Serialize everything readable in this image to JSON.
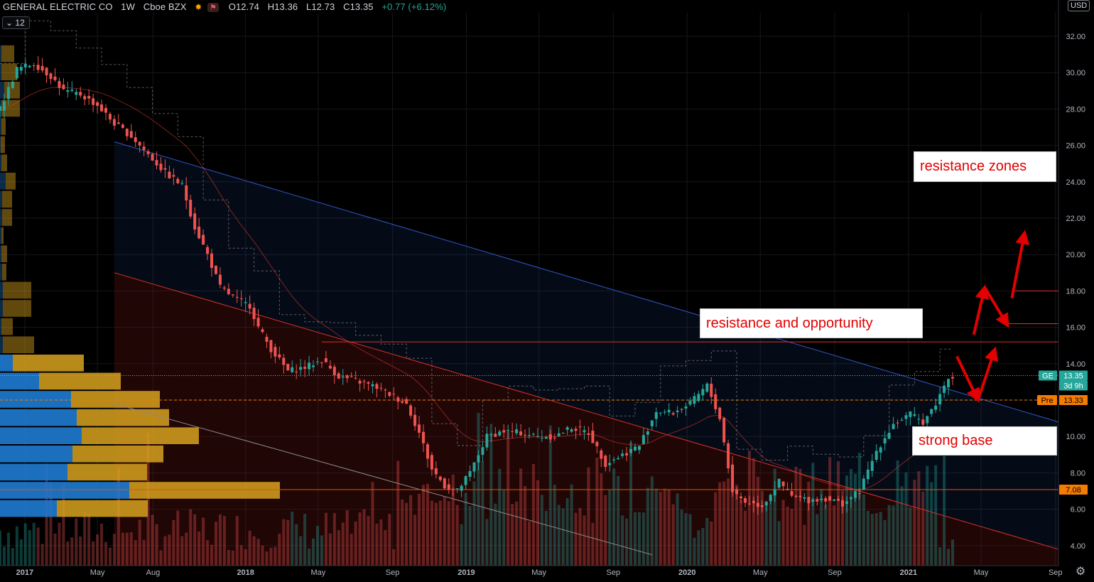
{
  "header": {
    "symbol": "GENERAL ELECTRIC CO",
    "interval": "1W",
    "exchange": "Cboe BZX",
    "open": "O12.74",
    "high": "H13.36",
    "low": "L12.73",
    "close": "C13.35",
    "change": "+0.77 (+6.12%)",
    "icons": [
      "dividends-icon",
      "earnings-icon"
    ]
  },
  "volume_badge": "12",
  "currency": "USD",
  "annotations": {
    "resistance_zones": "resistance zones",
    "resistance_opportunity": "resistance and opportunity",
    "strong_base": "strong base"
  },
  "price_labels": {
    "ticker": "GE",
    "price": "13.35",
    "countdown": "3d 9h",
    "pre_label": "Pre",
    "pre_price": "13.33",
    "support_price": "7.08"
  },
  "colors": {
    "up": "#26a69a",
    "down": "#ef5350",
    "annotation": "#e30000",
    "trend_blue": "#3057c9",
    "trend_red": "#d8322c",
    "pre_orange": "#f57c00",
    "vp_blue": "#1f7bd1",
    "vp_gold": "#d7a21f"
  },
  "chart_data": {
    "type": "candlestick",
    "title": "GENERAL ELECTRIC CO",
    "y_ticks": [
      "32.00",
      "30.00",
      "28.00",
      "26.00",
      "24.00",
      "22.00",
      "20.00",
      "18.00",
      "16.00",
      "14.00",
      "12.00",
      "10.00",
      "8.00",
      "6.00",
      "4.00"
    ],
    "y_tick_values": [
      32,
      30,
      28,
      26,
      24,
      22,
      20,
      18,
      16,
      14,
      12,
      10,
      8,
      6,
      4
    ],
    "x_ticks": [
      "2017",
      "May",
      "Aug",
      "2018",
      "May",
      "Sep",
      "2019",
      "May",
      "Sep",
      "2020",
      "May",
      "Sep",
      "2021",
      "May",
      "Sep"
    ],
    "x_tick_dates": [
      "2017-01-01",
      "2017-05-01",
      "2017-08-01",
      "2018-01-01",
      "2018-05-01",
      "2018-09-01",
      "2019-01-01",
      "2019-05-01",
      "2019-09-01",
      "2020-01-01",
      "2020-05-01",
      "2020-09-01",
      "2021-01-01",
      "2021-05-01",
      "2021-09-01"
    ],
    "ylim": [
      3.5,
      33
    ],
    "xlim": [
      "2016-11-21",
      "2021-09-06"
    ],
    "close_path": [
      [
        "2016-11-21",
        28.0
      ],
      [
        "2016-12-19",
        30.2
      ],
      [
        "2017-01-16",
        30.5
      ],
      [
        "2017-02-13",
        29.8
      ],
      [
        "2017-03-06",
        29.0
      ],
      [
        "2017-04-03",
        28.8
      ],
      [
        "2017-05-01",
        28.2
      ],
      [
        "2017-05-29",
        27.2
      ],
      [
        "2017-06-26",
        26.5
      ],
      [
        "2017-07-24",
        25.5
      ],
      [
        "2017-08-21",
        24.5
      ],
      [
        "2017-09-18",
        23.8
      ],
      [
        "2017-10-09",
        21.5
      ],
      [
        "2017-10-30",
        20.0
      ],
      [
        "2017-11-20",
        18.2
      ],
      [
        "2017-12-18",
        17.5
      ],
      [
        "2018-01-08",
        17.2
      ],
      [
        "2018-01-22",
        16.0
      ],
      [
        "2018-02-12",
        14.8
      ],
      [
        "2018-03-12",
        13.6
      ],
      [
        "2018-04-09",
        13.8
      ],
      [
        "2018-05-07",
        14.2
      ],
      [
        "2018-06-04",
        13.3
      ],
      [
        "2018-07-09",
        13.0
      ],
      [
        "2018-08-06",
        12.7
      ],
      [
        "2018-09-03",
        12.2
      ],
      [
        "2018-09-24",
        11.8
      ],
      [
        "2018-10-15",
        10.2
      ],
      [
        "2018-11-05",
        8.2
      ],
      [
        "2018-11-26",
        7.3
      ],
      [
        "2018-12-17",
        7.0
      ],
      [
        "2019-01-07",
        8.0
      ],
      [
        "2019-02-04",
        10.0
      ],
      [
        "2019-03-04",
        10.3
      ],
      [
        "2019-04-01",
        10.2
      ],
      [
        "2019-04-29",
        10.0
      ],
      [
        "2019-05-27",
        10.0
      ],
      [
        "2019-06-24",
        10.5
      ],
      [
        "2019-07-22",
        10.2
      ],
      [
        "2019-08-19",
        8.5
      ],
      [
        "2019-09-16",
        9.0
      ],
      [
        "2019-10-14",
        9.5
      ],
      [
        "2019-11-11",
        11.4
      ],
      [
        "2019-12-09",
        11.3
      ],
      [
        "2020-01-06",
        11.8
      ],
      [
        "2020-02-03",
        12.8
      ],
      [
        "2020-02-24",
        11.0
      ],
      [
        "2020-03-16",
        7.0
      ],
      [
        "2020-04-06",
        6.4
      ],
      [
        "2020-05-04",
        6.2
      ],
      [
        "2020-06-01",
        7.5
      ],
      [
        "2020-06-22",
        6.7
      ],
      [
        "2020-07-20",
        6.5
      ],
      [
        "2020-08-17",
        6.6
      ],
      [
        "2020-09-14",
        6.3
      ],
      [
        "2020-10-12",
        7.0
      ],
      [
        "2020-11-09",
        9.2
      ],
      [
        "2020-12-07",
        10.7
      ],
      [
        "2021-01-04",
        11.2
      ],
      [
        "2021-01-25",
        10.8
      ],
      [
        "2021-02-15",
        11.8
      ],
      [
        "2021-03-08",
        13.3
      ],
      [
        "2021-03-15",
        13.35
      ]
    ],
    "volume_profile": {
      "price_rows": [
        31,
        30,
        29,
        28,
        27,
        26,
        25,
        24,
        23,
        22,
        21,
        20,
        19,
        18,
        17,
        16,
        15,
        14,
        13,
        12,
        11,
        10,
        9,
        8,
        7,
        6
      ],
      "up_volume": [
        2,
        2,
        6,
        2,
        2,
        1,
        2,
        8,
        3,
        3,
        2,
        2,
        3,
        4,
        4,
        2,
        4,
        18,
        55,
        100,
        108,
        115,
        102,
        95,
        182,
        80
      ],
      "down_volume": [
        18,
        22,
        22,
        26,
        6,
        6,
        8,
        14,
        14,
        14,
        3,
        8,
        6,
        40,
        40,
        16,
        44,
        100,
        115,
        125,
        130,
        165,
        128,
        112,
        212,
        128
      ]
    },
    "trendlines": [
      {
        "color": "blue",
        "from": [
          "2017-05-29",
          26.2
        ],
        "to": [
          "2021-09-06",
          10.8
        ]
      },
      {
        "color": "red",
        "from": [
          "2017-05-29",
          19.0
        ],
        "to": [
          "2021-09-06",
          3.8
        ]
      },
      {
        "color": "gray",
        "from": [
          "2017-05-29",
          11.8
        ],
        "to": [
          "2019-11-04",
          3.5
        ]
      }
    ],
    "horizontal_levels": [
      15.2,
      13.35,
      13.33,
      12.0,
      7.08
    ],
    "projection_arrows": [
      {
        "from": [
          "2021-03-22",
          14.4
        ],
        "to": [
          "2021-04-26",
          12.0
        ]
      },
      {
        "from": [
          "2021-04-26",
          12.0
        ],
        "to": [
          "2021-05-24",
          14.8
        ]
      },
      {
        "from": [
          "2021-04-19",
          15.6
        ],
        "to": [
          "2021-05-07",
          18.2
        ]
      },
      {
        "from": [
          "2021-05-07",
          18.2
        ],
        "to": [
          "2021-06-14",
          16.1
        ]
      },
      {
        "from": [
          "2021-06-21",
          17.6
        ],
        "to": [
          "2021-07-12",
          21.2
        ]
      }
    ]
  }
}
